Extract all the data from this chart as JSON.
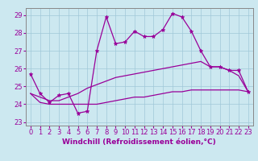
{
  "xlabel": "Windchill (Refroidissement éolien,°C)",
  "xlim": [
    -0.5,
    23.5
  ],
  "ylim": [
    22.8,
    29.4
  ],
  "xticks": [
    0,
    1,
    2,
    3,
    4,
    5,
    6,
    7,
    8,
    9,
    10,
    11,
    12,
    13,
    14,
    15,
    16,
    17,
    18,
    19,
    20,
    21,
    22,
    23
  ],
  "yticks": [
    23,
    24,
    25,
    26,
    27,
    28,
    29
  ],
  "background_color": "#cce8f0",
  "grid_color": "#a0c8d8",
  "line_color": "#990099",
  "line1_x": [
    0,
    1,
    2,
    3,
    4,
    5,
    6,
    7,
    8,
    9,
    10,
    11,
    12,
    13,
    14,
    15,
    16,
    17,
    18,
    19,
    20,
    21,
    22,
    23
  ],
  "line1_y": [
    25.7,
    24.6,
    24.1,
    24.5,
    24.6,
    23.5,
    23.6,
    27.0,
    28.9,
    27.4,
    27.5,
    28.1,
    27.8,
    27.8,
    28.2,
    29.1,
    28.9,
    28.1,
    27.0,
    26.1,
    26.1,
    25.9,
    25.9,
    24.7
  ],
  "line2_x": [
    0,
    1,
    2,
    3,
    4,
    5,
    6,
    7,
    8,
    9,
    10,
    11,
    12,
    13,
    14,
    15,
    16,
    17,
    18,
    19,
    20,
    21,
    22,
    23
  ],
  "line2_y": [
    24.6,
    24.4,
    24.2,
    24.2,
    24.4,
    24.6,
    24.9,
    25.1,
    25.3,
    25.5,
    25.6,
    25.7,
    25.8,
    25.9,
    26.0,
    26.1,
    26.2,
    26.3,
    26.4,
    26.1,
    26.1,
    25.9,
    25.6,
    24.7
  ],
  "line3_x": [
    0,
    1,
    2,
    3,
    4,
    5,
    6,
    7,
    8,
    9,
    10,
    11,
    12,
    13,
    14,
    15,
    16,
    17,
    18,
    19,
    20,
    21,
    22,
    23
  ],
  "line3_y": [
    24.6,
    24.1,
    24.0,
    24.0,
    24.0,
    24.0,
    24.0,
    24.0,
    24.1,
    24.2,
    24.3,
    24.4,
    24.4,
    24.5,
    24.6,
    24.7,
    24.7,
    24.8,
    24.8,
    24.8,
    24.8,
    24.8,
    24.8,
    24.7
  ],
  "fontsize_ticks": 6,
  "fontsize_xlabel": 6.5
}
